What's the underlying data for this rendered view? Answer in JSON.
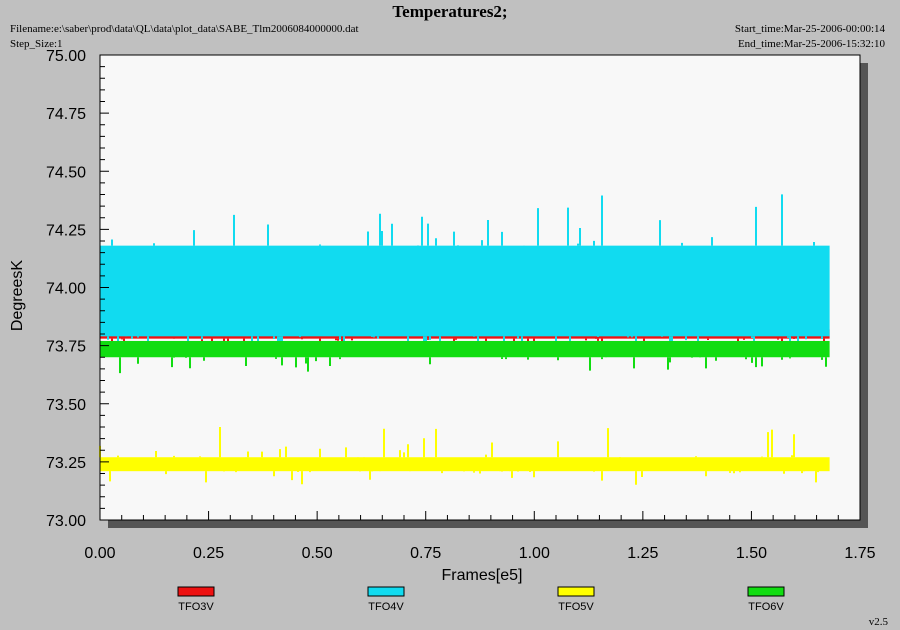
{
  "header": {
    "title": "Temperatures2;",
    "filename": "Filename:e:\\saber\\prod\\data\\QL\\data\\plot_data\\SABE_Tlm2006084000000.dat",
    "step_size": "Step_Size:1",
    "start_time": "Start_time:Mar-25-2006-00:00:14",
    "end_time": "End_time:Mar-25-2006-15:32:10"
  },
  "footer": {
    "version": "v2.5"
  },
  "chart_data": {
    "type": "line",
    "title": "Temperatures2;",
    "xlabel": "Frames[e5]",
    "ylabel": "DegreesK",
    "xlim": [
      0,
      1.75
    ],
    "ylim": [
      73.0,
      75.0
    ],
    "x_ticks": [
      "0.00",
      "0.25",
      "0.50",
      "0.75",
      "1.00",
      "1.25",
      "1.50",
      "1.75"
    ],
    "y_ticks": [
      "73.00",
      "73.25",
      "73.50",
      "73.75",
      "74.00",
      "74.25",
      "74.50",
      "74.75",
      "75.00"
    ],
    "legend_position": "bottom",
    "plot_background": "#f8f8f8",
    "x_extent": [
      0,
      1.68
    ],
    "series": [
      {
        "name": "TFO3V",
        "color": "#ee1111",
        "band": [
          73.78,
          73.82
        ],
        "spikes": [
          73.72,
          73.88
        ]
      },
      {
        "name": "TFO4V",
        "color": "#11dbf0",
        "band": [
          73.79,
          74.18
        ],
        "spikes": [
          73.73,
          74.45
        ]
      },
      {
        "name": "TFO5V",
        "color": "#ffff00",
        "band": [
          73.21,
          73.27
        ],
        "spikes": [
          73.15,
          73.41
        ]
      },
      {
        "name": "TFO6V",
        "color": "#11dd11",
        "band": [
          73.7,
          73.77
        ],
        "spikes": [
          73.63,
          73.77
        ]
      }
    ]
  }
}
